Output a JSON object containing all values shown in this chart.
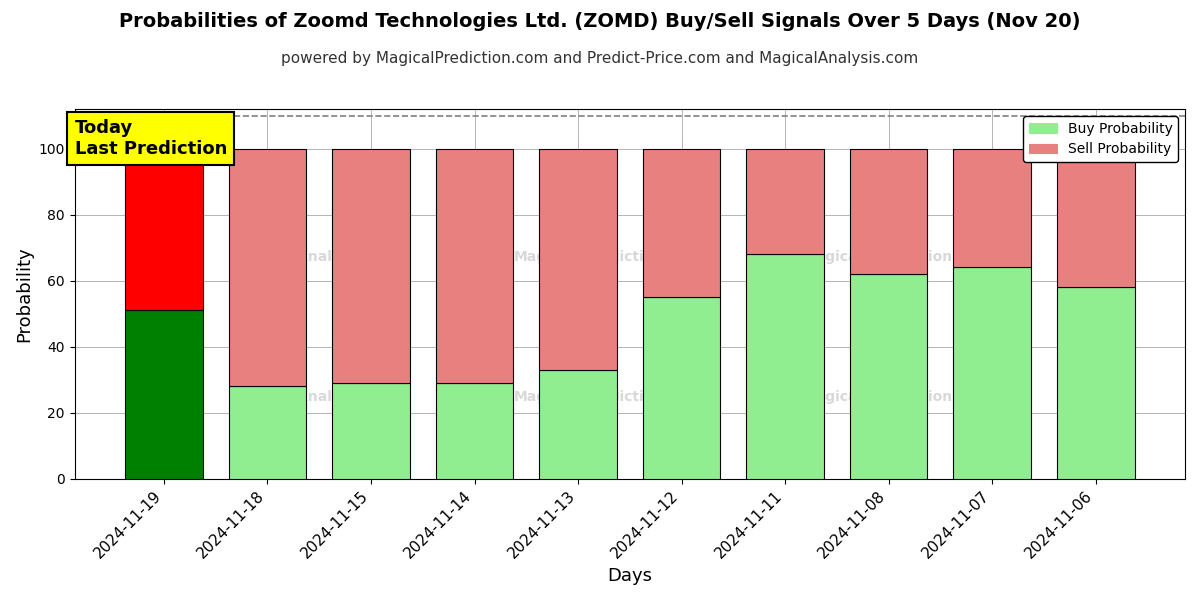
{
  "title": "Probabilities of Zoomd Technologies Ltd. (ZOMD) Buy/Sell Signals Over 5 Days (Nov 20)",
  "subtitle": "powered by MagicalPrediction.com and Predict-Price.com and MagicalAnalysis.com",
  "xlabel": "Days",
  "ylabel": "Probability",
  "categories": [
    "2024-11-19",
    "2024-11-18",
    "2024-11-15",
    "2024-11-14",
    "2024-11-13",
    "2024-11-12",
    "2024-11-11",
    "2024-11-08",
    "2024-11-07",
    "2024-11-06"
  ],
  "buy_values": [
    51,
    28,
    29,
    29,
    33,
    55,
    68,
    62,
    64,
    58
  ],
  "sell_values": [
    49,
    72,
    71,
    71,
    67,
    45,
    32,
    38,
    36,
    42
  ],
  "today_buy_color": "#008000",
  "today_sell_color": "#ff0000",
  "buy_color": "#90EE90",
  "sell_color": "#E88080",
  "today_annotation": "Today\nLast Prediction",
  "ylim_max": 112,
  "dashed_line_y": 110,
  "bar_width": 0.75,
  "legend_buy": "Buy Probability",
  "legend_sell": "Sell Probability",
  "background_color": "#ffffff",
  "grid_color": "#aaaaaa",
  "title_fontsize": 14,
  "subtitle_fontsize": 11,
  "yticks": [
    0,
    20,
    40,
    60,
    80,
    100
  ]
}
